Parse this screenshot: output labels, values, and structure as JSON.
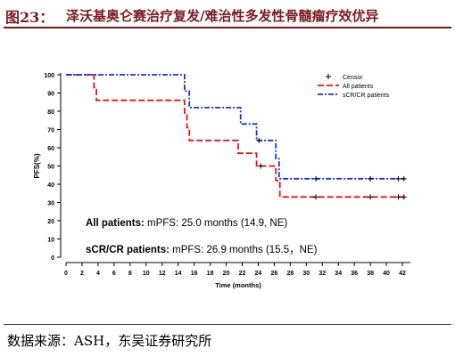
{
  "title": {
    "prefix": "图23：",
    "text": "泽沃基奥仑赛治疗复发/难治性多发性骨髓瘤疗效优异"
  },
  "source": "数据来源：ASH，东吴证券研究所",
  "colors": {
    "title": "#7a1c22",
    "all": "#e0151d",
    "scr": "#1f33c4",
    "axis": "#000000"
  },
  "chart_data": {
    "type": "line",
    "ylabel": "PFS(%)",
    "xlabel": "Time (months)",
    "xlim": [
      0,
      43
    ],
    "ylim": [
      0,
      100
    ],
    "x_ticks": [
      0,
      2,
      4,
      6,
      8,
      10,
      12,
      14,
      16,
      18,
      20,
      22,
      24,
      26,
      28,
      30,
      32,
      34,
      36,
      38,
      40,
      42
    ],
    "y_ticks": [
      0,
      10,
      20,
      30,
      40,
      50,
      60,
      70,
      80,
      90,
      100
    ],
    "legend": {
      "position": "top-right",
      "censor_label": "Censor",
      "entries": [
        "All patients",
        "sCR/CR patients"
      ]
    },
    "series": [
      {
        "name": "All patients",
        "color": "#e0151d",
        "steps": [
          [
            0,
            100
          ],
          [
            3.5,
            100
          ],
          [
            3.5,
            93
          ],
          [
            3.8,
            93
          ],
          [
            3.8,
            86
          ],
          [
            14.8,
            86
          ],
          [
            14.8,
            79
          ],
          [
            15.1,
            79
          ],
          [
            15.1,
            71
          ],
          [
            15.4,
            71
          ],
          [
            15.4,
            64
          ],
          [
            21.5,
            64
          ],
          [
            21.5,
            57
          ],
          [
            23.8,
            57
          ],
          [
            23.8,
            50
          ],
          [
            26.2,
            50
          ],
          [
            26.2,
            42
          ],
          [
            26.7,
            42
          ],
          [
            26.7,
            33
          ],
          [
            42.3,
            33
          ]
        ],
        "censors": [
          [
            24.3,
            50
          ],
          [
            31.2,
            33
          ],
          [
            38.0,
            33
          ],
          [
            41.5,
            33
          ],
          [
            42.2,
            33
          ]
        ]
      },
      {
        "name": "sCR/CR patients",
        "color": "#1f33c4",
        "steps": [
          [
            0,
            100
          ],
          [
            14.8,
            100
          ],
          [
            14.8,
            91
          ],
          [
            15.4,
            91
          ],
          [
            15.4,
            82
          ],
          [
            21.8,
            82
          ],
          [
            21.8,
            73
          ],
          [
            23.8,
            73
          ],
          [
            23.8,
            64
          ],
          [
            26.2,
            64
          ],
          [
            26.2,
            54
          ],
          [
            26.6,
            54
          ],
          [
            26.6,
            43
          ],
          [
            42.3,
            43
          ]
        ],
        "censors": [
          [
            24.1,
            64
          ],
          [
            31.2,
            43
          ],
          [
            38.0,
            43
          ],
          [
            41.5,
            43
          ],
          [
            42.2,
            43
          ]
        ]
      }
    ],
    "annotations": [
      {
        "bold": "All patients:",
        "text": " mPFS: 25.0 months (14.9, NE)"
      },
      {
        "bold": "sCR/CR patients:",
        "text": " mPFS: 26.9 months (15.5，NE)"
      }
    ]
  }
}
